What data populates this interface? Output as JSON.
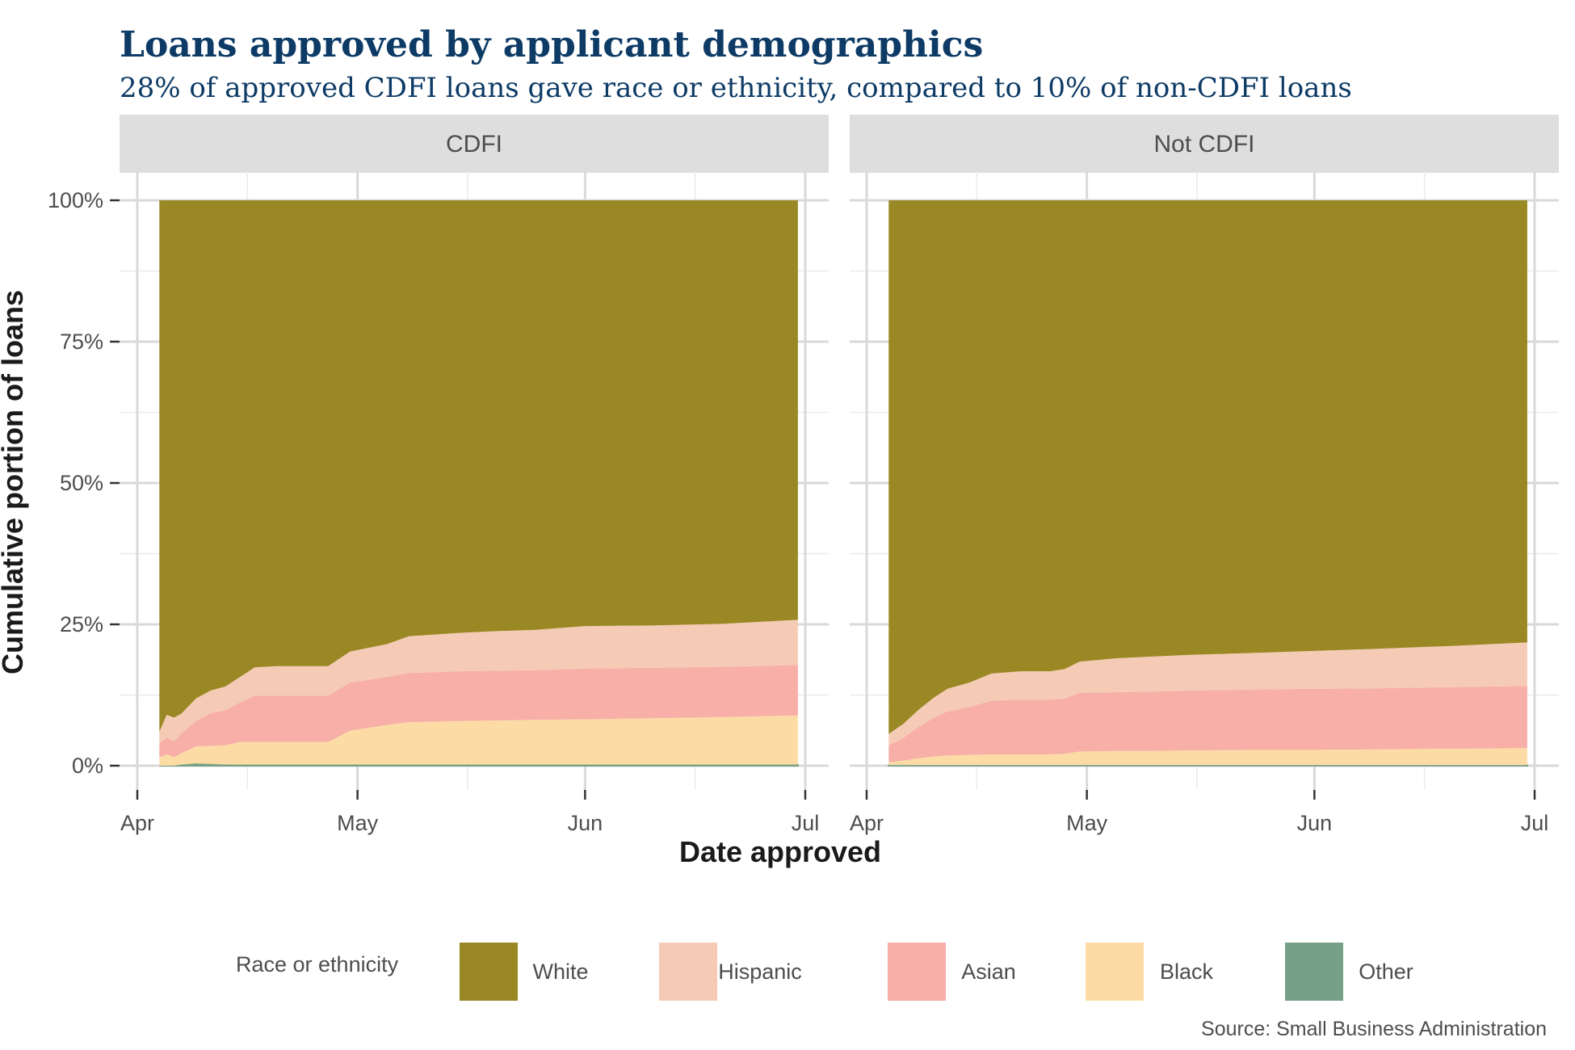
{
  "chart_data": {
    "type": "area",
    "stacked": true,
    "title": "Loans approved by applicant demographics",
    "subtitle": "28% of approved CDFI loans gave race or ethnicity, compared to 10% of non-CDFI loans",
    "xlabel": "Date approved",
    "ylabel": "Cumulative portion of loans",
    "caption": "Source: Small Business Administration",
    "x_ticks": [
      "Apr",
      "May",
      "Jun",
      "Jul"
    ],
    "y_ticks": [
      "0%",
      "25%",
      "50%",
      "75%",
      "100%"
    ],
    "ylim": [
      0,
      1
    ],
    "xlim": [
      "2020-04-01",
      "2020-07-01"
    ],
    "grid": true,
    "legend": {
      "title": "Race or ethnicity",
      "placement": "bottom",
      "entries": [
        {
          "name": "White",
          "color": "#9a8824"
        },
        {
          "name": "Hispanic",
          "color": "#f5cbb5"
        },
        {
          "name": "Asian",
          "color": "#f7afa8"
        },
        {
          "name": "Black",
          "color": "#fcdca4"
        },
        {
          "name": "Other",
          "color": "#76a087"
        }
      ]
    },
    "panels": [
      {
        "label": "CDFI",
        "x": [
          "2020-04-04",
          "2020-04-05",
          "2020-04-06",
          "2020-04-07",
          "2020-04-09",
          "2020-04-11",
          "2020-04-13",
          "2020-04-15",
          "2020-04-17",
          "2020-04-20",
          "2020-04-24",
          "2020-04-27",
          "2020-04-30",
          "2020-05-05",
          "2020-05-08",
          "2020-05-15",
          "2020-05-20",
          "2020-05-25",
          "2020-06-01",
          "2020-06-10",
          "2020-06-20",
          "2020-06-30"
        ],
        "series": [
          {
            "name": "Other",
            "values": [
              0.0,
              0.0,
              0.0,
              0.002,
              0.004,
              0.003,
              0.002,
              0.002,
              0.002,
              0.002,
              0.002,
              0.002,
              0.002,
              0.002,
              0.002,
              0.002,
              0.002,
              0.002,
              0.002,
              0.002,
              0.002,
              0.002
            ]
          },
          {
            "name": "Black",
            "values": [
              0.015,
              0.02,
              0.015,
              0.02,
              0.03,
              0.032,
              0.034,
              0.04,
              0.04,
              0.04,
              0.04,
              0.04,
              0.06,
              0.07,
              0.075,
              0.077,
              0.078,
              0.079,
              0.08,
              0.082,
              0.084,
              0.087
            ]
          },
          {
            "name": "Asian",
            "values": [
              0.025,
              0.03,
              0.028,
              0.035,
              0.045,
              0.058,
              0.062,
              0.07,
              0.082,
              0.082,
              0.082,
              0.082,
              0.085,
              0.085,
              0.087,
              0.088,
              0.088,
              0.088,
              0.09,
              0.089,
              0.089,
              0.089
            ]
          },
          {
            "name": "Hispanic",
            "values": [
              0.02,
              0.04,
              0.042,
              0.035,
              0.04,
              0.04,
              0.042,
              0.045,
              0.05,
              0.052,
              0.052,
              0.052,
              0.055,
              0.058,
              0.065,
              0.068,
              0.07,
              0.071,
              0.075,
              0.075,
              0.076,
              0.08
            ]
          },
          {
            "name": "White",
            "values": [
              0.94,
              0.91,
              0.915,
              0.908,
              0.881,
              0.867,
              0.86,
              0.843,
              0.826,
              0.824,
              0.824,
              0.824,
              0.798,
              0.785,
              0.771,
              0.765,
              0.762,
              0.76,
              0.753,
              0.752,
              0.749,
              0.742
            ]
          }
        ]
      },
      {
        "label": "Not CDFI",
        "x": [
          "2020-04-04",
          "2020-04-06",
          "2020-04-08",
          "2020-04-10",
          "2020-04-12",
          "2020-04-15",
          "2020-04-18",
          "2020-04-22",
          "2020-04-26",
          "2020-04-28",
          "2020-04-30",
          "2020-05-05",
          "2020-05-10",
          "2020-05-15",
          "2020-05-25",
          "2020-06-01",
          "2020-06-10",
          "2020-06-20",
          "2020-06-30"
        ],
        "series": [
          {
            "name": "Other",
            "values": [
              0.001,
              0.001,
              0.001,
              0.001,
              0.001,
              0.001,
              0.001,
              0.001,
              0.001,
              0.001,
              0.001,
              0.001,
              0.001,
              0.001,
              0.001,
              0.001,
              0.001,
              0.001,
              0.001
            ]
          },
          {
            "name": "Black",
            "values": [
              0.005,
              0.008,
              0.012,
              0.015,
              0.017,
              0.018,
              0.019,
              0.019,
              0.019,
              0.02,
              0.024,
              0.025,
              0.025,
              0.026,
              0.027,
              0.027,
              0.028,
              0.029,
              0.03
            ]
          },
          {
            "name": "Asian",
            "values": [
              0.03,
              0.04,
              0.055,
              0.068,
              0.078,
              0.085,
              0.095,
              0.097,
              0.097,
              0.098,
              0.104,
              0.104,
              0.105,
              0.106,
              0.107,
              0.108,
              0.108,
              0.109,
              0.11
            ]
          },
          {
            "name": "Hispanic",
            "values": [
              0.02,
              0.025,
              0.03,
              0.035,
              0.04,
              0.043,
              0.048,
              0.05,
              0.05,
              0.052,
              0.055,
              0.06,
              0.062,
              0.063,
              0.065,
              0.067,
              0.07,
              0.073,
              0.077
            ]
          },
          {
            "name": "White",
            "values": [
              0.944,
              0.926,
              0.902,
              0.881,
              0.864,
              0.853,
              0.837,
              0.833,
              0.833,
              0.829,
              0.816,
              0.81,
              0.807,
              0.804,
              0.8,
              0.797,
              0.793,
              0.788,
              0.782
            ]
          }
        ]
      }
    ]
  }
}
